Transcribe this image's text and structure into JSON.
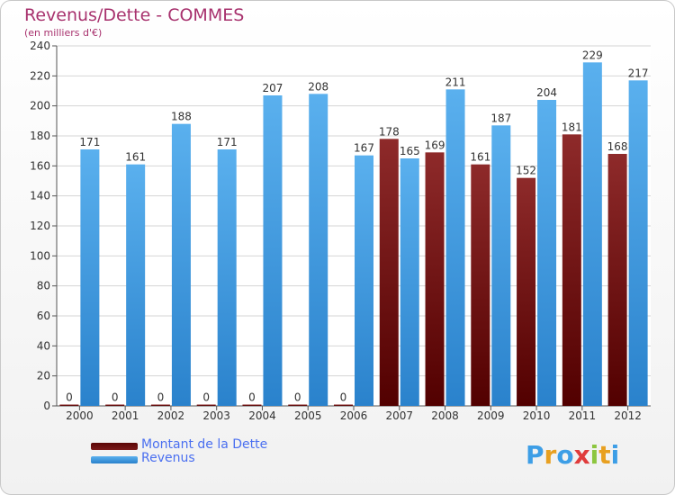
{
  "header": {
    "title": "Revenus/Dette - COMMES",
    "subtitle": "(en milliers d'€)"
  },
  "chart_data": {
    "type": "bar",
    "categories": [
      "2000",
      "2001",
      "2002",
      "2003",
      "2004",
      "2005",
      "2006",
      "2007",
      "2008",
      "2009",
      "2010",
      "2011",
      "2012"
    ],
    "series": [
      {
        "name": "Montant de la Dette",
        "color": "#7a1a1a",
        "values": [
          0,
          0,
          0,
          0,
          0,
          0,
          0,
          178,
          169,
          161,
          152,
          181,
          168
        ]
      },
      {
        "name": "Revenus",
        "color": "#3d9ee6",
        "values": [
          171,
          161,
          188,
          171,
          207,
          208,
          167,
          165,
          211,
          187,
          204,
          229,
          217
        ]
      }
    ],
    "ylim": [
      0,
      240
    ],
    "yticks": [
      0,
      20,
      40,
      60,
      80,
      100,
      120,
      140,
      160,
      180,
      200,
      220,
      240
    ],
    "grid": true,
    "legend": "bottom-left"
  },
  "legend": {
    "items": [
      {
        "label": "Montant de la Dette",
        "color": "#6b0f0f"
      },
      {
        "label": "Revenus",
        "color": "#3d9ee6"
      }
    ]
  },
  "logo": {
    "letters": [
      "P",
      "r",
      "o",
      "x",
      "i",
      "t",
      "i"
    ]
  }
}
